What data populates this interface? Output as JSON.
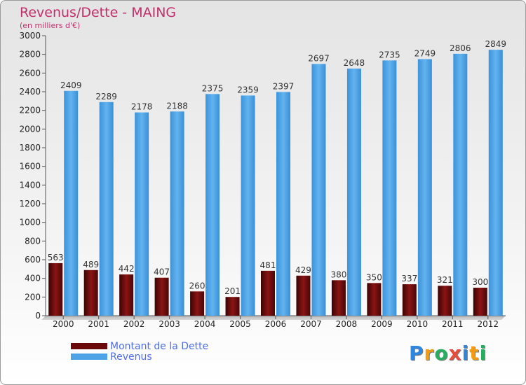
{
  "chart_data": {
    "type": "bar",
    "title": "Revenus/Dette - MAING",
    "subtitle": "(en milliers d'€)",
    "categories": [
      "2000",
      "2001",
      "2002",
      "2003",
      "2004",
      "2005",
      "2006",
      "2007",
      "2008",
      "2009",
      "2010",
      "2011",
      "2012"
    ],
    "series": [
      {
        "name": "Montant de la Dette",
        "color": "#7a0d0d",
        "values": [
          563,
          489,
          442,
          407,
          260,
          201,
          481,
          429,
          380,
          350,
          337,
          321,
          300
        ]
      },
      {
        "name": "Revenus",
        "color": "#4ea3e6",
        "values": [
          2409,
          2289,
          2178,
          2188,
          2375,
          2359,
          2397,
          2697,
          2648,
          2735,
          2749,
          2806,
          2849
        ]
      }
    ],
    "ylim": [
      0,
      3000
    ],
    "yticks": [
      0,
      200,
      400,
      600,
      800,
      1000,
      1200,
      1400,
      1600,
      1800,
      2000,
      2200,
      2400,
      2600,
      2800,
      3000
    ],
    "legend_position": "bottom-left",
    "grid": false
  },
  "logo": {
    "letters": [
      "P",
      "r",
      "o",
      "x",
      "i",
      "t",
      "i"
    ],
    "colors": [
      "#2e86de",
      "#f39c12",
      "#27ae60",
      "#e74c3c",
      "#2e86de",
      "#f39c12",
      "#27ae60"
    ]
  }
}
